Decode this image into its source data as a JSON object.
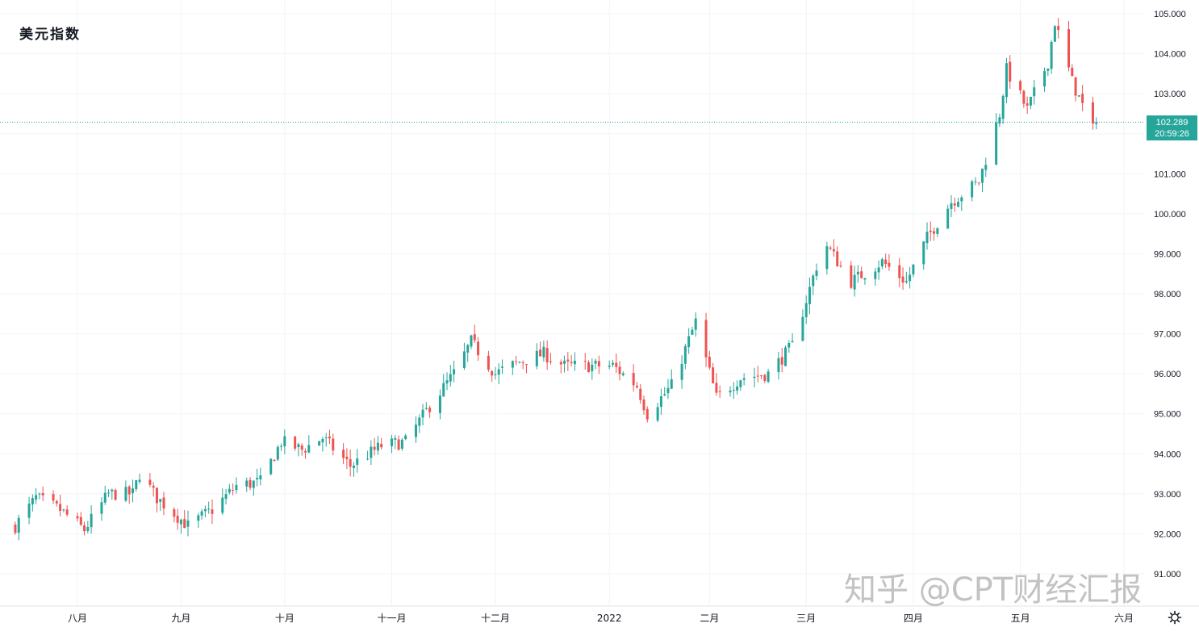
{
  "chart_data": {
    "type": "candlestick",
    "title": "美元指数",
    "y_axis": {
      "position": "right",
      "ylim": [
        90.7,
        105.3
      ],
      "ticks": [
        "91.000",
        "92.000",
        "93.000",
        "94.000",
        "95.000",
        "96.000",
        "97.000",
        "98.000",
        "99.000",
        "100.000",
        "101.000",
        "102.000",
        "103.000",
        "104.000",
        "105.000"
      ]
    },
    "x_axis": {
      "labels": [
        {
          "label": "八月",
          "date": "2021-08-02"
        },
        {
          "label": "九月",
          "date": "2021-09-01"
        },
        {
          "label": "十月",
          "date": "2021-10-01"
        },
        {
          "label": "十一月",
          "date": "2021-11-01"
        },
        {
          "label": "十二月",
          "date": "2021-12-01"
        },
        {
          "label": "2022",
          "date": "2022-01-03"
        },
        {
          "label": "二月",
          "date": "2022-02-01"
        },
        {
          "label": "三月",
          "date": "2022-03-01"
        },
        {
          "label": "四月",
          "date": "2022-04-01"
        },
        {
          "label": "五月",
          "date": "2022-05-02"
        },
        {
          "label": "六月",
          "date": "2022-06-01"
        }
      ]
    },
    "last_price": {
      "value": 102.289,
      "label": "102.289",
      "countdown": "20:59:26"
    },
    "colors": {
      "up": "#26a69a",
      "down": "#ef5350",
      "grid": "#f0f3fa",
      "price_line": "#26a69a",
      "axis_text": "#131722"
    },
    "grid": true,
    "anchors": [
      {
        "date": "2021-07-15",
        "close": 92.2
      },
      {
        "date": "2021-07-21",
        "close": 92.9
      },
      {
        "date": "2021-07-28",
        "close": 92.6
      },
      {
        "date": "2021-08-04",
        "close": 92.1
      },
      {
        "date": "2021-08-11",
        "close": 93.0
      },
      {
        "date": "2021-08-18",
        "close": 93.0
      },
      {
        "date": "2021-08-20",
        "close": 93.5
      },
      {
        "date": "2021-08-25",
        "close": 92.9
      },
      {
        "date": "2021-09-03",
        "close": 92.2
      },
      {
        "date": "2021-09-10",
        "close": 92.6
      },
      {
        "date": "2021-09-17",
        "close": 93.2
      },
      {
        "date": "2021-09-24",
        "close": 93.3
      },
      {
        "date": "2021-09-30",
        "close": 94.3
      },
      {
        "date": "2021-10-06",
        "close": 94.1
      },
      {
        "date": "2021-10-12",
        "close": 94.4
      },
      {
        "date": "2021-10-20",
        "close": 93.7
      },
      {
        "date": "2021-10-29",
        "close": 94.2
      },
      {
        "date": "2021-11-05",
        "close": 94.3
      },
      {
        "date": "2021-11-12",
        "close": 95.2
      },
      {
        "date": "2021-11-19",
        "close": 96.0
      },
      {
        "date": "2021-11-24",
        "close": 96.8
      },
      {
        "date": "2021-12-01",
        "close": 96.0
      },
      {
        "date": "2021-12-08",
        "close": 96.3
      },
      {
        "date": "2021-12-15",
        "close": 96.5
      },
      {
        "date": "2021-12-21",
        "close": 96.2
      },
      {
        "date": "2022-01-04",
        "close": 96.2
      },
      {
        "date": "2022-01-11",
        "close": 95.7
      },
      {
        "date": "2022-01-14",
        "close": 95.0
      },
      {
        "date": "2022-01-21",
        "close": 95.7
      },
      {
        "date": "2022-01-28",
        "close": 97.3
      },
      {
        "date": "2022-02-03",
        "close": 95.4
      },
      {
        "date": "2022-02-10",
        "close": 95.9
      },
      {
        "date": "2022-02-18",
        "close": 96.0
      },
      {
        "date": "2022-02-25",
        "close": 96.7
      },
      {
        "date": "2022-03-04",
        "close": 98.7
      },
      {
        "date": "2022-03-07",
        "close": 99.2
      },
      {
        "date": "2022-03-14",
        "close": 98.3
      },
      {
        "date": "2022-03-23",
        "close": 98.8
      },
      {
        "date": "2022-03-30",
        "close": 98.3
      },
      {
        "date": "2022-04-05",
        "close": 99.4
      },
      {
        "date": "2022-04-12",
        "close": 100.3
      },
      {
        "date": "2022-04-20",
        "close": 100.8
      },
      {
        "date": "2022-04-26",
        "close": 102.5
      },
      {
        "date": "2022-04-28",
        "close": 103.6
      },
      {
        "date": "2022-05-04",
        "close": 102.6
      },
      {
        "date": "2022-05-10",
        "close": 103.8
      },
      {
        "date": "2022-05-12",
        "close": 104.8
      },
      {
        "date": "2022-05-17",
        "close": 103.3
      },
      {
        "date": "2022-05-19",
        "close": 102.9
      },
      {
        "date": "2022-05-23",
        "close": 102.1
      },
      {
        "date": "2022-05-24",
        "close": 102.289
      }
    ]
  }
}
